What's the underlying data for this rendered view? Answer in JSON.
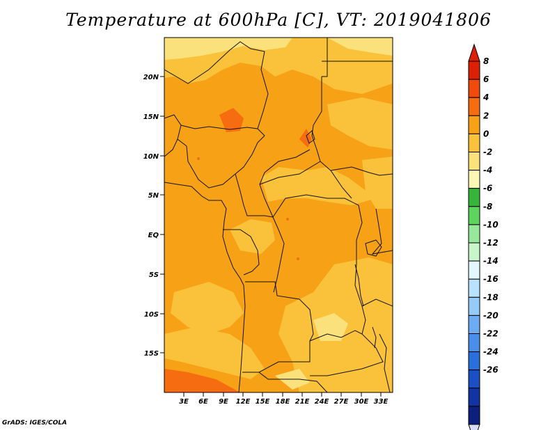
{
  "map": {
    "title": "Temperature at 600hPa [C], VT: 2019041806",
    "credit": "GrADS: IGES/COLA",
    "lat_labels": [
      "20N",
      "15N",
      "10N",
      "5N",
      "EQ",
      "5S",
      "10S",
      "15S"
    ],
    "lon_labels": [
      "3E",
      "6E",
      "9E",
      "12E",
      "15E",
      "18E",
      "21E",
      "24E",
      "27E",
      "30E",
      "33E"
    ]
  },
  "colorbar": {
    "labels": [
      "8",
      "6",
      "4",
      "2",
      "0",
      "-2",
      "-4",
      "-6",
      "-8",
      "-10",
      "-12",
      "-14",
      "-16",
      "-18",
      "-20",
      "-22",
      "-24",
      "-26"
    ],
    "colors": [
      "#dc2006",
      "#f04a0c",
      "#f56d10",
      "#f7a216",
      "#f9c23a",
      "#fbe17b",
      "#fdf7b5",
      "#37b53a",
      "#5cd45e",
      "#98e89b",
      "#c8f5ca",
      "#e2f7ff",
      "#b8e3fd",
      "#94cbf9",
      "#6dacf3",
      "#4a8ee9",
      "#2b6fdc",
      "#1a50c4",
      "#1233a4",
      "#0c1f7d"
    ],
    "top_triangle_color": "#dc2006",
    "bottom_triangle_color": "#d8dcf5"
  }
}
